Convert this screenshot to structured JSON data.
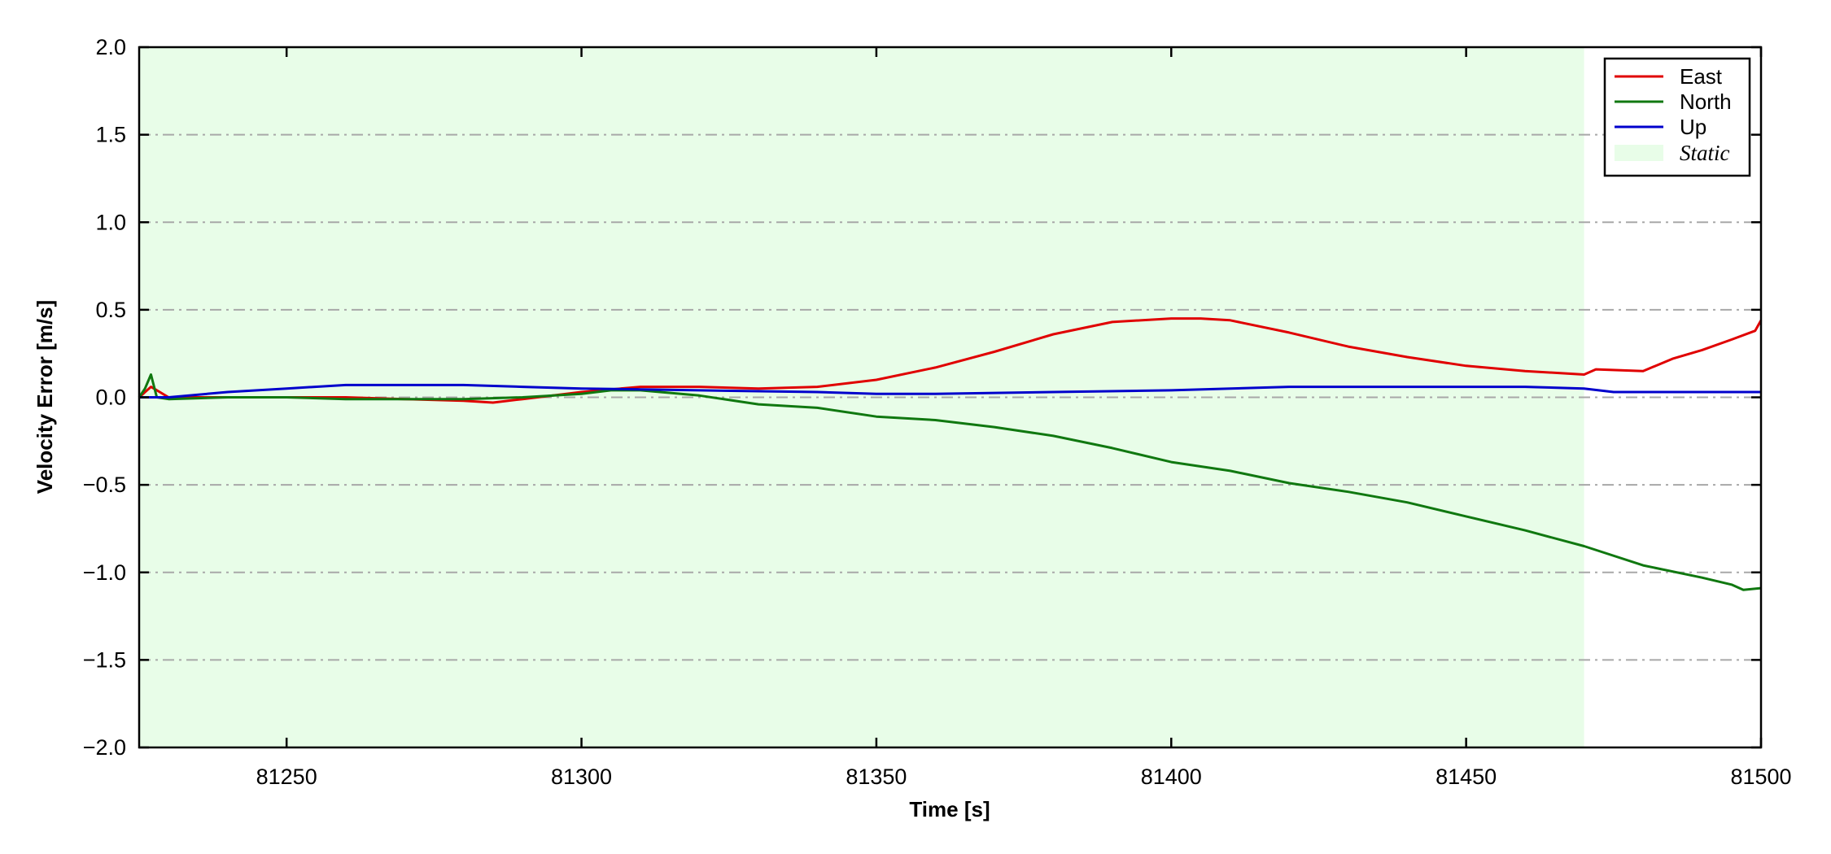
{
  "chart_data": {
    "type": "line",
    "title": "",
    "xlabel": "Time [s]",
    "ylabel": "Velocity Error [m/s]",
    "xlim": [
      81225,
      81500
    ],
    "ylim": [
      -2.0,
      2.0
    ],
    "xticks": [
      81250,
      81300,
      81350,
      81400,
      81450,
      81500
    ],
    "xtick_labels": [
      "81250",
      "81300",
      "81350",
      "81400",
      "81450",
      "81500"
    ],
    "yticks": [
      2.0,
      1.5,
      1.0,
      0.5,
      0.0,
      -0.5,
      -1.0,
      -1.5,
      -2.0
    ],
    "ytick_labels": [
      "2.0",
      "1.5",
      "1.0",
      "0.5",
      "0.0",
      "−0.5",
      "−1.0",
      "−1.5",
      "−2.0"
    ],
    "grid": "horizontal dash-dot",
    "legend_position": "top-right",
    "shaded_region": {
      "name": "Static",
      "x_start": 81225,
      "x_end": 81470,
      "color": "#e8fde8"
    },
    "series": [
      {
        "name": "East",
        "color": "#e00000",
        "x": [
          81225,
          81227,
          81230,
          81240,
          81250,
          81260,
          81270,
          81280,
          81285,
          81290,
          81300,
          81310,
          81320,
          81330,
          81340,
          81350,
          81360,
          81370,
          81380,
          81390,
          81400,
          81405,
          81410,
          81420,
          81430,
          81440,
          81450,
          81460,
          81470,
          81472,
          81480,
          81485,
          81490,
          81495,
          81499,
          81500
        ],
        "values": [
          0.0,
          0.06,
          0.0,
          0.0,
          0.0,
          0.0,
          -0.01,
          -0.02,
          -0.03,
          -0.01,
          0.03,
          0.06,
          0.06,
          0.05,
          0.06,
          0.1,
          0.17,
          0.26,
          0.36,
          0.43,
          0.45,
          0.45,
          0.44,
          0.37,
          0.29,
          0.23,
          0.18,
          0.15,
          0.13,
          0.16,
          0.15,
          0.22,
          0.27,
          0.33,
          0.38,
          0.44
        ]
      },
      {
        "name": "North",
        "color": "#107810",
        "x": [
          81225,
          81226,
          81227,
          81228,
          81230,
          81240,
          81250,
          81260,
          81270,
          81280,
          81290,
          81300,
          81305,
          81310,
          81320,
          81330,
          81340,
          81350,
          81360,
          81370,
          81380,
          81390,
          81400,
          81410,
          81420,
          81430,
          81440,
          81450,
          81460,
          81470,
          81480,
          81490,
          81495,
          81497,
          81500
        ],
        "values": [
          0.0,
          0.05,
          0.13,
          0.0,
          -0.01,
          0.0,
          0.0,
          -0.01,
          -0.01,
          -0.01,
          0.0,
          0.02,
          0.04,
          0.04,
          0.01,
          -0.04,
          -0.06,
          -0.11,
          -0.13,
          -0.17,
          -0.22,
          -0.29,
          -0.37,
          -0.42,
          -0.49,
          -0.54,
          -0.6,
          -0.68,
          -0.76,
          -0.85,
          -0.96,
          -1.03,
          -1.07,
          -1.1,
          -1.09
        ]
      },
      {
        "name": "Up",
        "color": "#0000cc",
        "x": [
          81225,
          81230,
          81240,
          81250,
          81260,
          81270,
          81280,
          81290,
          81300,
          81320,
          81340,
          81350,
          81360,
          81380,
          81400,
          81420,
          81440,
          81460,
          81470,
          81475,
          81480,
          81490,
          81500
        ],
        "values": [
          0.0,
          0.0,
          0.03,
          0.05,
          0.07,
          0.07,
          0.07,
          0.06,
          0.05,
          0.04,
          0.03,
          0.02,
          0.02,
          0.03,
          0.04,
          0.06,
          0.06,
          0.06,
          0.05,
          0.03,
          0.03,
          0.03,
          0.03
        ]
      }
    ]
  }
}
